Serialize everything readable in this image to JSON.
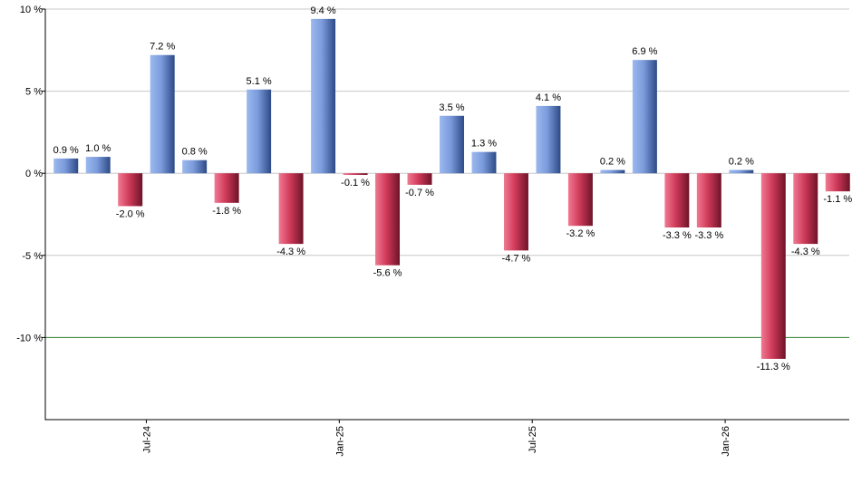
{
  "chart_data": {
    "type": "bar",
    "title": "",
    "xlabel": "",
    "ylabel": "",
    "ylim": [
      -15,
      10
    ],
    "yticks": [
      10,
      5,
      0,
      -5,
      -10
    ],
    "y_tick_labels": [
      "10 %",
      "5 %",
      "0 %",
      "-5 %",
      "-10 %"
    ],
    "grid": true,
    "reference_line": -10,
    "x_tick_labels": [
      {
        "label": "Jul-24",
        "index": 2.5
      },
      {
        "label": "Jan-25",
        "index": 8.5
      },
      {
        "label": "Jul-25",
        "index": 14.5
      },
      {
        "label": "Jan-26",
        "index": 20.5
      }
    ],
    "values": [
      0.9,
      1.0,
      -2.0,
      7.2,
      0.8,
      -1.8,
      5.1,
      -4.3,
      9.4,
      -0.1,
      -5.6,
      -0.7,
      3.5,
      1.3,
      -4.7,
      4.1,
      -3.2,
      0.2,
      6.9,
      -3.3,
      -3.3,
      0.2,
      -11.3,
      -4.3,
      -1.1
    ],
    "value_labels": [
      "0.9 %",
      "1.0 %",
      "-2.0 %",
      "7.2 %",
      "0.8 %",
      "-1.8 %",
      "5.1 %",
      "-4.3 %",
      "9.4 %",
      "-0.1 %",
      "-5.6 %",
      "-0.7 %",
      "3.5 %",
      "1.3 %",
      "-4.7 %",
      "4.1 %",
      "-3.2 %",
      "0.2 %",
      "6.9 %",
      "-3.3 %",
      "-3.3 %",
      "0.2 %",
      "-11.3 %",
      "-4.3 %",
      "-1.1 %"
    ],
    "colors": {
      "positive": "#6f93d6",
      "negative": "#c8324f",
      "reference_line": "#2e7d2e",
      "grid": "#c8c8c8",
      "axis": "#000000"
    }
  }
}
